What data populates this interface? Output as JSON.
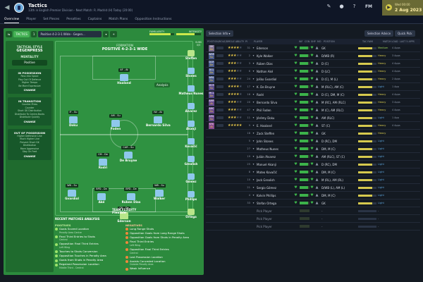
{
  "topbar": {
    "title": "Tactics",
    "subtitle": "13th in English Premier Division - Next Match: R. Madrid (H) Today (20:00)",
    "date_line1": "Wed 00:00",
    "date_line2": "2 Aug 2023",
    "fm_label": "FM"
  },
  "tabs": [
    "Overview",
    "Player",
    "Set Pieces",
    "Penalties",
    "Captains",
    "Match Plans",
    "Opposition Instructions"
  ],
  "tactic": {
    "tab_label": "TACTICS",
    "tab_icon": "tactics-icon",
    "formation_select": "Positive 4-2-3-1 Wide - Gegen...",
    "familiarity_label": "FAMILIARITY",
    "familiarity_value": 0.85,
    "intensity_label": "INTENSITY",
    "intensity_value": 0.75,
    "style_label": "TACTICAL STYLE",
    "style_value": "GEGENPRESS",
    "mentality_label": "MENTALITY",
    "mentality_value": "Positive",
    "in_possession": {
      "title": "IN POSSESSION",
      "lines": [
        "Pass Into Space",
        "Play Out Of Defence",
        "Higher Tempo",
        "Be More Expressive"
      ],
      "change": "CHANGE"
    },
    "in_transition": {
      "title": "IN TRANSITION",
      "lines": [
        "Counter-Press",
        "Counter",
        "Short GK Distribution",
        "Distribute To Centre-Backs",
        "Distribute Quickly"
      ],
      "change": "CHANGE"
    },
    "out_of_possession": {
      "title": "OUT OF POSSESSION",
      "lines": [
        "Higher Defensive Line",
        "Much Higher Line",
        "Prevent Short GK",
        "Distribution",
        "More Aggressive",
        "Stay On Feet"
      ],
      "change": "CHANGE"
    },
    "formation_label": "FORMATION",
    "formation_name": "POSITIVE 4-2-3-1 WIDE",
    "analysis_label": "Analysis",
    "fluidity_label": "TEAM FLUIDITY",
    "fluidity_value": "Flexible",
    "subs_label": "SUBS",
    "subs_count": "0/5"
  },
  "pitch_players": [
    {
      "role": "AF - At",
      "name": "Haaland"
    },
    {
      "role": "IF - Su",
      "name": "Doku"
    },
    {
      "role": "AM - Su",
      "name": "Foden"
    },
    {
      "role": "IW - At",
      "name": "Bernardo Silva"
    },
    {
      "role": "CM - De",
      "name": "Rodri"
    },
    {
      "role": "CAR - Su",
      "name": "De Bruyne"
    },
    {
      "role": "WB - Su",
      "name": "Gvardiol"
    },
    {
      "role": "BPD - De",
      "name": "Aké"
    },
    {
      "role": "BPD - De",
      "name": "Rúben Dias"
    },
    {
      "role": "WB - Su",
      "name": "Walker"
    },
    {
      "role": "GK - De",
      "name": "Ederson"
    }
  ],
  "subs": [
    "Steffen",
    "Stones",
    "Matheus Nunes",
    "Álvarez",
    "Akanji",
    "Kovačić",
    "Grealish",
    "Gómez",
    "Phillips",
    "Ortega"
  ],
  "recent": {
    "title": "RECENT MATCHES ANALYSIS",
    "positives_label": "POSITIVES",
    "negatives_label": "NEGATIVES",
    "positives": [
      {
        "text": "Goals Scored Location",
        "sub": "Penalty Area Centre"
      },
      {
        "text": "Final Third Entries to Shots",
        "sub": "Central"
      },
      {
        "text": "Opposition Final Third Entries",
        "sub": "Left Wing"
      },
      {
        "text": "Touches to Shots Conversion",
        "sub": ""
      },
      {
        "text": "Opposition Touches in Penalty Area",
        "sub": ""
      },
      {
        "text": "Goals from Shots in Penalty Area",
        "sub": ""
      },
      {
        "text": "Regained Possession Location",
        "sub": "Middle Third - Central"
      }
    ],
    "negatives": [
      {
        "text": "Long Range Shots",
        "sub": ""
      },
      {
        "text": "Opposition Goals from Long Range Shots",
        "sub": ""
      },
      {
        "text": "Opposition Goals from Shots in Penalty Area",
        "sub": ""
      },
      {
        "text": "Final Third Entries",
        "sub": "Left Wing"
      },
      {
        "text": "Opposition Final Third Entries",
        "sub": "Central"
      },
      {
        "text": "Lost Possession Location",
        "sub": ""
      },
      {
        "text": "Assists Conceded Location",
        "sub": "Outside Penalty Area"
      },
      {
        "text": "Weak Influence",
        "sub": ""
      }
    ]
  },
  "squad": {
    "selection_info": "Selection Info",
    "selection_advice": "Selection Advice",
    "quick_pick": "Quick Pick",
    "columns": [
      "POSITION/ROLE/DUTY",
      "ROLE ABILITY",
      "PI",
      "PLAYER",
      "INF",
      "CON",
      "SHP",
      "MO",
      "POSITION",
      "TAC FAMI",
      "MATCH LOAD",
      "LAST 5 APPS"
    ],
    "rows": [
      {
        "pos": "GK",
        "duty": "De",
        "color": "#7a6b8f",
        "stars": 4,
        "num": "31",
        "name": "Ederson",
        "position": "GK",
        "load": "Medium",
        "tail": "4 Apps"
      },
      {
        "pos": "WBR",
        "duty": "Su",
        "color": "#4a5a8f",
        "stars": 3,
        "num": "2",
        "name": "Kyle Walker",
        "position": "D/WB (R)",
        "load": "Heavy",
        "tail": "3 Apps"
      },
      {
        "pos": "DCR",
        "duty": "De",
        "color": "#4a5a8f",
        "stars": 3,
        "num": "3",
        "name": "Rúben Dias",
        "position": "D (C)",
        "load": "Heavy",
        "tail": "4 Apps"
      },
      {
        "pos": "DCL",
        "duty": "De",
        "color": "#4a5a8f",
        "stars": 3,
        "num": "6",
        "name": "Nathan Aké",
        "position": "D (LC)",
        "load": "Heavy",
        "tail": "4 Apps"
      },
      {
        "pos": "WBL",
        "duty": "Su",
        "color": "#4a5a8f",
        "stars": 3,
        "num": "24",
        "name": "Joško Gvardiol",
        "position": "D (C), M (L)",
        "load": "Heavy",
        "tail": "2 Apps"
      },
      {
        "pos": "MCR",
        "duty": "Su",
        "color": "#5a4a8f",
        "stars": 4,
        "num": "17",
        "name": "K. De Bruyne",
        "position": "M (RLC), AM (C)",
        "load": "Light",
        "tail": "1 App"
      },
      {
        "pos": "MCL",
        "duty": "De",
        "color": "#5a4a8f",
        "stars": 4,
        "num": "16",
        "name": "Rodri",
        "position": "D (C), DM, M (C)",
        "load": "Heavy",
        "tail": "4 Apps"
      },
      {
        "pos": "AMR",
        "duty": "At",
        "color": "#6a4a8f",
        "stars": 3,
        "num": "20",
        "name": "Bernardo Silva",
        "position": "M (RC), AM (RLC)",
        "load": "Heavy",
        "tail": "3 Apps"
      },
      {
        "pos": "AMC",
        "duty": "Su",
        "color": "#6a4a8f",
        "stars": 3,
        "num": "47",
        "name": "Phil Foden",
        "position": "M (C), AM (RLC)",
        "load": "Heavy",
        "tail": "4 Apps"
      },
      {
        "pos": "AML",
        "duty": "Su",
        "color": "#6a4a8f",
        "stars": 3,
        "num": "11",
        "name": "Jérémy Doku",
        "position": "AM (RLC)",
        "load": "Light",
        "tail": "1 App"
      },
      {
        "pos": "STC",
        "duty": "At",
        "color": "#8a4a8f",
        "stars": 5,
        "num": "9",
        "name": "E. Haaland",
        "position": "ST (C)",
        "load": "Heavy",
        "tail": "4 Apps"
      },
      {
        "pos": "",
        "duty": "",
        "color": "",
        "stars": 0,
        "num": "18",
        "name": "Zack Steffen",
        "position": "GK",
        "load": "Heavy",
        "tail": ""
      },
      {
        "pos": "",
        "duty": "",
        "color": "",
        "stars": 0,
        "num": "5",
        "name": "John Stones",
        "position": "D (RC), DM",
        "load": "Light",
        "tail": ""
      },
      {
        "pos": "",
        "duty": "",
        "color": "",
        "stars": 0,
        "num": "27",
        "name": "Matheus Nunes",
        "position": "DM, M (C)",
        "load": "Light",
        "tail": ""
      },
      {
        "pos": "",
        "duty": "",
        "color": "",
        "stars": 0,
        "num": "19",
        "name": "Julián Álvarez",
        "position": "AM (RLC), ST (C)",
        "load": "Light",
        "tail": ""
      },
      {
        "pos": "",
        "duty": "",
        "color": "",
        "stars": 0,
        "num": "25",
        "name": "Manuel Akanji",
        "position": "D (RC), DM",
        "load": "Light",
        "tail": ""
      },
      {
        "pos": "",
        "duty": "",
        "color": "",
        "stars": 0,
        "num": "8",
        "name": "Mateo Kovačić",
        "position": "DM, M (C)",
        "load": "Light",
        "tail": ""
      },
      {
        "pos": "",
        "duty": "",
        "color": "",
        "stars": 0,
        "num": "10",
        "name": "Jack Grealish",
        "position": "M (RL), AM (RL)",
        "load": "Light",
        "tail": ""
      },
      {
        "pos": "",
        "duty": "",
        "color": "",
        "stars": 0,
        "num": "21",
        "name": "Sergio Gómez",
        "position": "D/WB (L), AM (L)",
        "load": "Light",
        "tail": ""
      },
      {
        "pos": "",
        "duty": "",
        "color": "",
        "stars": 0,
        "num": "4",
        "name": "Kalvin Phillips",
        "position": "DM, M (C)",
        "load": "Light",
        "tail": ""
      },
      {
        "pos": "",
        "duty": "",
        "color": "",
        "stars": 0,
        "num": "33",
        "name": "Stefan Ortega",
        "position": "GK",
        "load": "Light",
        "tail": ""
      },
      {
        "pos": "",
        "duty": "",
        "color": "",
        "stars": 0,
        "num": "",
        "name": "Pick Player",
        "position": "-",
        "load": "-",
        "tail": ""
      },
      {
        "pos": "",
        "duty": "",
        "color": "",
        "stars": 0,
        "num": "",
        "name": "Pick Player",
        "position": "-",
        "load": "-",
        "tail": ""
      },
      {
        "pos": "",
        "duty": "",
        "color": "",
        "stars": 0,
        "num": "",
        "name": "Pick Player",
        "position": "-",
        "load": "-",
        "tail": ""
      }
    ]
  },
  "colors": {
    "accent": "#46b356",
    "pitch": "#2f9241",
    "panel": "#2c8a3d",
    "star": "#e9c94a"
  }
}
